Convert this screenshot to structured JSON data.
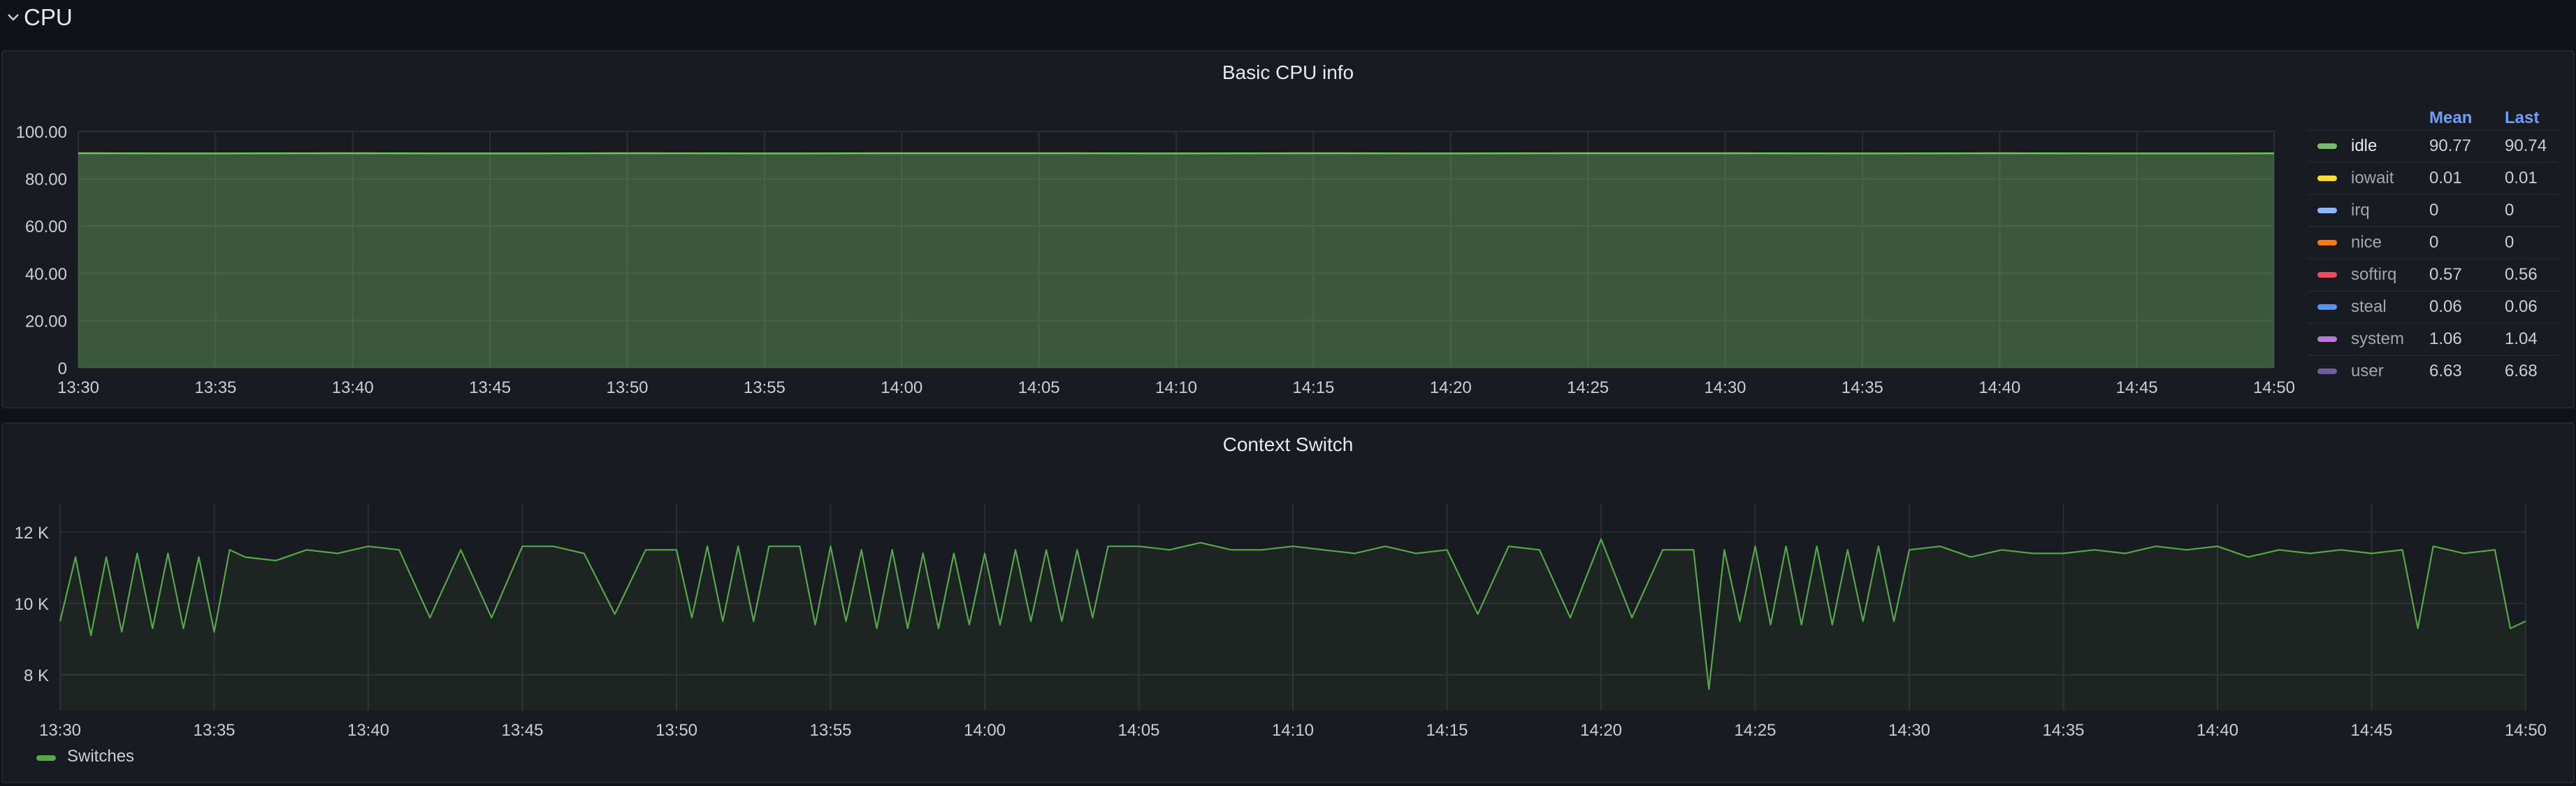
{
  "section": {
    "title": "CPU"
  },
  "colors": {
    "idle": "#73bf69",
    "iowait": "#fade2a",
    "irq": "#8ab8ff",
    "nice": "#ff780a",
    "softirq": "#f2495c",
    "steal": "#5794f2",
    "system": "#b877d9",
    "user": "#705da0",
    "switches": "#56a64b"
  },
  "chart_data": [
    {
      "type": "area",
      "title": "Basic CPU info",
      "x_ticks": [
        "13:30",
        "13:35",
        "13:40",
        "13:45",
        "13:50",
        "13:55",
        "14:00",
        "14:05",
        "14:10",
        "14:15",
        "14:20",
        "14:25",
        "14:30",
        "14:35",
        "14:40",
        "14:45",
        "14:50"
      ],
      "y_ticks": [
        "0",
        "20.00",
        "40.00",
        "60.00",
        "80.00",
        "100.00"
      ],
      "ylim": [
        0,
        100
      ],
      "xlim": [
        "13:30",
        "14:50"
      ],
      "legend_columns": [
        "Mean",
        "Last"
      ],
      "series": [
        {
          "name": "idle",
          "mean": "90.77",
          "last": "90.74",
          "values": [
            90.8,
            90.7,
            90.8,
            90.7,
            90.8,
            90.7,
            90.8,
            90.8,
            90.7,
            90.8,
            90.7,
            90.8,
            90.8,
            90.7,
            90.8,
            90.7,
            90.74
          ]
        },
        {
          "name": "iowait",
          "mean": "0.01",
          "last": "0.01"
        },
        {
          "name": "irq",
          "mean": "0",
          "last": "0"
        },
        {
          "name": "nice",
          "mean": "0",
          "last": "0"
        },
        {
          "name": "softirq",
          "mean": "0.57",
          "last": "0.56"
        },
        {
          "name": "steal",
          "mean": "0.06",
          "last": "0.06"
        },
        {
          "name": "system",
          "mean": "1.06",
          "last": "1.04"
        },
        {
          "name": "user",
          "mean": "6.63",
          "last": "6.68"
        }
      ]
    },
    {
      "type": "line",
      "title": "Context Switch",
      "x_ticks": [
        "13:30",
        "13:35",
        "13:40",
        "13:45",
        "13:50",
        "13:55",
        "14:00",
        "14:05",
        "14:10",
        "14:15",
        "14:20",
        "14:25",
        "14:30",
        "14:35",
        "14:40",
        "14:45",
        "14:50"
      ],
      "y_ticks": [
        "8 K",
        "10 K",
        "12 K"
      ],
      "ylim": [
        7000,
        12800
      ],
      "xlim": [
        "13:30",
        "14:50"
      ],
      "series": [
        {
          "name": "Switches",
          "x": [
            "13:30",
            "13:30:30",
            "13:31",
            "13:31:30",
            "13:32",
            "13:32:30",
            "13:33",
            "13:33:30",
            "13:34",
            "13:34:30",
            "13:35",
            "13:35:30",
            "13:36",
            "13:37",
            "13:38",
            "13:39",
            "13:40",
            "13:41",
            "13:42",
            "13:43",
            "13:44",
            "13:45",
            "13:46",
            "13:47",
            "13:48",
            "13:49",
            "13:50",
            "13:50:30",
            "13:51",
            "13:51:30",
            "13:52",
            "13:52:30",
            "13:53",
            "13:54",
            "13:54:30",
            "13:55",
            "13:55:30",
            "13:56",
            "13:56:30",
            "13:57",
            "13:57:30",
            "13:58",
            "13:58:30",
            "13:59",
            "13:59:30",
            "14:00",
            "14:00:30",
            "14:01",
            "14:01:30",
            "14:02",
            "14:02:30",
            "14:03",
            "14:03:30",
            "14:04",
            "14:05",
            "14:06",
            "14:07",
            "14:08",
            "14:09",
            "14:10",
            "14:11",
            "14:12",
            "14:13",
            "14:14",
            "14:15",
            "14:16",
            "14:17",
            "14:18",
            "14:19",
            "14:20",
            "14:21",
            "14:22",
            "14:23",
            "14:23:30",
            "14:24",
            "14:24:30",
            "14:25",
            "14:25:30",
            "14:26",
            "14:26:30",
            "14:27",
            "14:27:30",
            "14:28",
            "14:28:30",
            "14:29",
            "14:29:30",
            "14:30",
            "14:31",
            "14:32",
            "14:33",
            "14:34",
            "14:35",
            "14:36",
            "14:37",
            "14:38",
            "14:39",
            "14:40",
            "14:41",
            "14:42",
            "14:43",
            "14:44",
            "14:45",
            "14:46",
            "14:46:30",
            "14:47",
            "14:48",
            "14:49",
            "14:49:30",
            "14:50"
          ],
          "values": [
            9500,
            11300,
            9100,
            11300,
            9200,
            11400,
            9300,
            11400,
            9300,
            11300,
            9200,
            11500,
            11300,
            11200,
            11500,
            11400,
            11600,
            11500,
            9600,
            11500,
            9600,
            11600,
            11600,
            11400,
            9700,
            11500,
            11500,
            9600,
            11600,
            9500,
            11600,
            9500,
            11600,
            11600,
            9400,
            11600,
            9500,
            11500,
            9300,
            11500,
            9300,
            11400,
            9300,
            11400,
            9400,
            11400,
            9400,
            11500,
            9500,
            11500,
            9500,
            11500,
            9600,
            11600,
            11600,
            11500,
            11700,
            11500,
            11500,
            11600,
            11500,
            11400,
            11600,
            11400,
            11500,
            9700,
            11600,
            11500,
            9600,
            11800,
            9600,
            11500,
            11500,
            7600,
            11500,
            9500,
            11600,
            9400,
            11600,
            9400,
            11600,
            9400,
            11500,
            9500,
            11600,
            9500,
            11500,
            11600,
            11300,
            11500,
            11400,
            11400,
            11500,
            11400,
            11600,
            11500,
            11600,
            11300,
            11500,
            11400,
            11500,
            11400,
            11500,
            9300,
            11600,
            11400,
            11500,
            9300,
            9500
          ]
        }
      ]
    }
  ]
}
